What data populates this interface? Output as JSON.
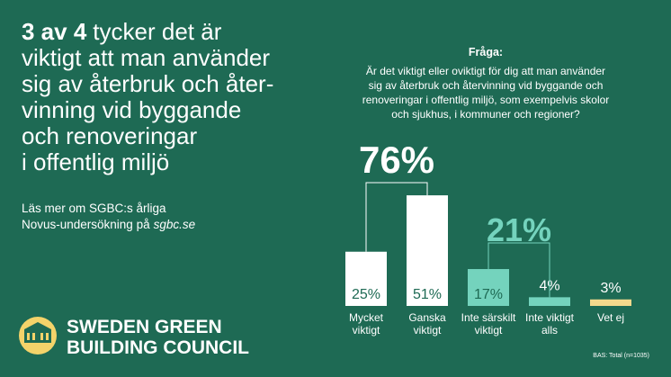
{
  "headline": {
    "emphasis": "3 av 4",
    "lines": [
      "tycker det är",
      "viktigt att man använder",
      "sig av återbruk och åter-",
      "vinning vid byggande",
      "och renoveringar",
      "i offentlig miljö"
    ]
  },
  "read_more": {
    "lines": [
      "Läs mer om SGBC:s årliga",
      "Novus-undersökning på"
    ],
    "link": "sgbc.se"
  },
  "logo": {
    "lines": [
      "SWEDEN GREEN",
      "BUILDING COUNCIL"
    ]
  },
  "footnote": "BAS: Total (n=1035)",
  "chart_data": {
    "type": "bar",
    "title": "Fråga:",
    "subtitle_lines": [
      "Är det viktigt eller oviktigt för dig att man använder",
      "sig av återbruk och återvinning vid byggande och",
      "renoveringar i offentlig miljö, som exempelvis skolor",
      "och sjukhus, i kommuner och regioner?"
    ],
    "categories": [
      "Mycket viktigt",
      "Ganska viktigt",
      "Inte särskilt viktigt",
      "Inte viktigt alls",
      "Vet ej"
    ],
    "values": [
      25,
      51,
      17,
      4,
      3
    ],
    "value_labels": [
      "25%",
      "51%",
      "17%",
      "4%",
      "3%"
    ],
    "colors": [
      "#ffffff",
      "#ffffff",
      "#74d3bd",
      "#74d3bd",
      "#f4d98c"
    ],
    "annotations": [
      {
        "value": 76,
        "label": "76%",
        "color": "#ffffff"
      },
      {
        "value": 21,
        "label": "21%",
        "color": "#74d3bd"
      }
    ]
  }
}
